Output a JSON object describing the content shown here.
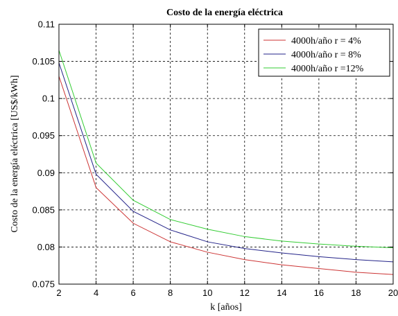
{
  "chart_data": {
    "type": "line",
    "title": "Costo de la energía eléctrica",
    "xlabel": "k [años]",
    "ylabel": "Costo de la energía eléctrica [US$/kWh]",
    "xlim": [
      2,
      20
    ],
    "ylim": [
      0.075,
      0.11
    ],
    "xticks": [
      2,
      4,
      6,
      8,
      10,
      12,
      14,
      16,
      18,
      20
    ],
    "yticks": [
      0.075,
      0.08,
      0.085,
      0.09,
      0.095,
      0.1,
      0.105,
      0.11
    ],
    "ytick_labels": [
      "0.075",
      "0.08",
      "0.085",
      "0.09",
      "0.095",
      "0.1",
      "0.105",
      "0.11"
    ],
    "grid": true,
    "legend_position": "top-right",
    "x": [
      2,
      4,
      6,
      8,
      10,
      12,
      14,
      16,
      18,
      20
    ],
    "series": [
      {
        "name": "4000h/año r = 4%",
        "color": "#cc3333",
        "values": [
          0.103,
          0.088,
          0.0832,
          0.0807,
          0.0793,
          0.0783,
          0.0776,
          0.0771,
          0.0766,
          0.0763
        ]
      },
      {
        "name": "4000h/año r = 8%",
        "color": "#222288",
        "values": [
          0.1048,
          0.0898,
          0.0848,
          0.0823,
          0.0807,
          0.0798,
          0.0792,
          0.0787,
          0.0783,
          0.078
        ]
      },
      {
        "name": "4000h/año r =12%",
        "color": "#33cc33",
        "values": [
          0.1065,
          0.0913,
          0.0863,
          0.0837,
          0.0824,
          0.0814,
          0.0808,
          0.0804,
          0.0801,
          0.0799
        ]
      }
    ]
  }
}
